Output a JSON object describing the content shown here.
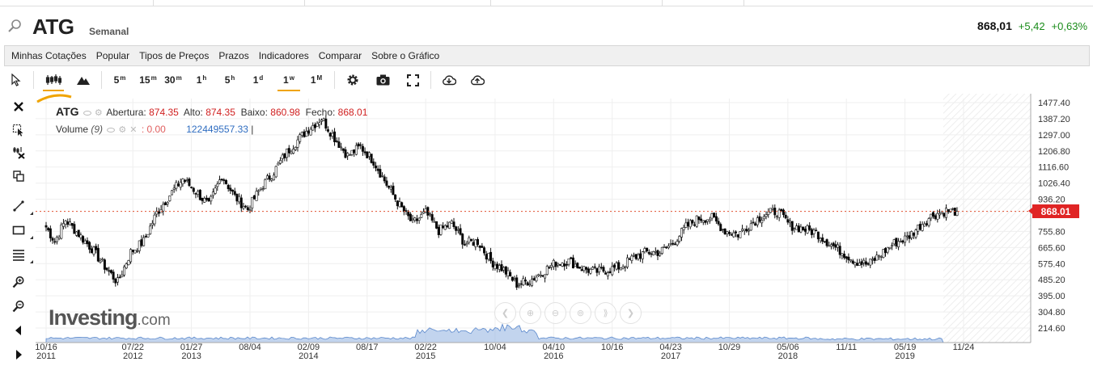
{
  "header": {
    "symbol": "ATG",
    "period": "Semanal",
    "last_price": "868,01",
    "change": "+5,42",
    "change_pct": "+0,63%"
  },
  "menu": [
    "Minhas Cotações",
    "Popular",
    "Tipos de Preços",
    "Prazos",
    "Indicadores",
    "Comparar",
    "Sobre o Gráfico"
  ],
  "toolbar": {
    "timeframes": [
      {
        "label": "5",
        "sup": "m"
      },
      {
        "label": "15",
        "sup": "m"
      },
      {
        "label": "30",
        "sup": "m"
      },
      {
        "label": "1",
        "sup": "h"
      },
      {
        "label": "5",
        "sup": "h"
      },
      {
        "label": "1",
        "sup": "d"
      },
      {
        "label": "1",
        "sup": "w"
      },
      {
        "label": "1",
        "sup": "M"
      }
    ],
    "active_timeframe": "1w",
    "icons": [
      "cursor-icon",
      "candlestick-icon",
      "mountain-icon",
      "settings-icon",
      "camera-icon",
      "fullscreen-icon",
      "download-cloud-icon",
      "upload-cloud-icon"
    ]
  },
  "left_tools": [
    "close-icon",
    "crosshair-select-icon",
    "delete-drawings-icon",
    "clone-icon",
    "trendline-icon",
    "rectangle-icon",
    "horizontal-lines-icon",
    "zoom-in-icon",
    "zoom-out-icon",
    "scroll-left-icon",
    "scroll-right-icon"
  ],
  "legend": {
    "symbol": "ATG",
    "open_label": "Abertura:",
    "open": "874.35",
    "high_label": "Alto:",
    "high": "874.35",
    "low_label": "Baixo:",
    "low": "860.98",
    "close_label": "Fecho:",
    "close": "868.01",
    "volume_label": "Volume",
    "volume_param": "(9)",
    "volume_ma": ": 0.00",
    "volume_value": "122449557.33"
  },
  "watermark": {
    "brand": "Investing",
    "suffix": ".com"
  },
  "price_tag": "868.01",
  "colors": {
    "up_candle": "#ffffff",
    "down_candle": "#000000",
    "volume": "#8fb1e0",
    "price_line": "#e05030",
    "price_tag": "#e02424",
    "change_positive": "#1a8c1a"
  },
  "chart_data": {
    "type": "candlestick",
    "title": "ATG",
    "interval": "Semanal",
    "y_ticks": [
      214.6,
      304.8,
      395.0,
      485.2,
      575.4,
      665.6,
      755.8,
      936.2,
      1026.4,
      1116.6,
      1206.8,
      1297.0,
      1387.2,
      1477.4
    ],
    "y_tick_labels": [
      "214.60",
      "304.80",
      "395.00",
      "485.20",
      "575.40",
      "665.60",
      "755.80",
      "936.20",
      "1026.40",
      "1116.60",
      "1206.80",
      "1297.00",
      "1387.20",
      "1477.40"
    ],
    "x_ticks": [
      {
        "label": "10/16",
        "year": "2011",
        "date": "2011-10-16"
      },
      {
        "label": "07/22",
        "year": "2012",
        "date": "2012-07-22"
      },
      {
        "label": "01/27",
        "year": "2013",
        "date": "2013-01-27"
      },
      {
        "label": "08/04",
        "year": "",
        "date": "2013-08-04"
      },
      {
        "label": "02/09",
        "year": "2014",
        "date": "2014-02-09"
      },
      {
        "label": "08/17",
        "year": "",
        "date": "2014-08-17"
      },
      {
        "label": "02/22",
        "year": "2015",
        "date": "2015-02-22"
      },
      {
        "label": "10/04",
        "year": "",
        "date": "2015-10-04"
      },
      {
        "label": "04/10",
        "year": "2016",
        "date": "2016-04-10"
      },
      {
        "label": "10/16",
        "year": "",
        "date": "2016-10-16"
      },
      {
        "label": "04/23",
        "year": "2017",
        "date": "2017-04-23"
      },
      {
        "label": "10/29",
        "year": "",
        "date": "2017-10-29"
      },
      {
        "label": "05/06",
        "year": "2018",
        "date": "2018-05-06"
      },
      {
        "label": "11/11",
        "year": "",
        "date": "2018-11-11"
      },
      {
        "label": "05/19",
        "year": "2019",
        "date": "2019-05-19"
      },
      {
        "label": "11/24",
        "year": "",
        "date": "2019-11-24"
      }
    ],
    "last_price": 868.01,
    "series": [
      {
        "name": "ATG",
        "x": [
          "2011-10-16",
          "2011-11-13",
          "2011-12-18",
          "2012-01-29",
          "2012-03-11",
          "2012-04-22",
          "2012-06-03",
          "2012-07-15",
          "2012-08-26",
          "2012-10-07",
          "2012-11-18",
          "2012-12-30",
          "2013-02-10",
          "2013-03-24",
          "2013-05-05",
          "2013-06-16",
          "2013-07-28",
          "2013-09-08",
          "2013-10-20",
          "2013-12-01",
          "2014-01-12",
          "2014-02-09",
          "2014-03-23",
          "2014-05-04",
          "2014-06-15",
          "2014-07-27",
          "2014-09-07",
          "2014-10-19",
          "2014-11-30",
          "2015-01-11",
          "2015-02-22",
          "2015-04-05",
          "2015-05-17",
          "2015-06-28",
          "2015-08-09",
          "2015-09-20",
          "2015-11-01",
          "2015-12-13",
          "2016-01-24",
          "2016-03-06",
          "2016-04-17",
          "2016-05-29",
          "2016-07-10",
          "2016-08-21",
          "2016-10-02",
          "2016-11-13",
          "2016-12-25",
          "2017-02-05",
          "2017-03-19",
          "2017-04-30",
          "2017-06-11",
          "2017-07-23",
          "2017-09-03",
          "2017-10-15",
          "2017-11-26",
          "2018-01-07",
          "2018-02-18",
          "2018-04-01",
          "2018-05-13",
          "2018-06-24",
          "2018-08-05",
          "2018-09-16",
          "2018-10-28",
          "2018-12-09",
          "2019-01-20",
          "2019-03-03",
          "2019-04-14",
          "2019-05-26",
          "2019-07-07",
          "2019-08-18",
          "2019-09-29",
          "2019-11-03"
        ],
        "close": [
          780,
          700,
          820,
          740,
          660,
          560,
          470,
          640,
          700,
          860,
          960,
          1050,
          980,
          900,
          1070,
          950,
          880,
          1000,
          1090,
          1200,
          1280,
          1330,
          1390,
          1280,
          1180,
          1230,
          1150,
          1020,
          900,
          800,
          860,
          760,
          800,
          690,
          700,
          590,
          540,
          460,
          480,
          530,
          580,
          590,
          550,
          530,
          540,
          560,
          610,
          640,
          640,
          690,
          780,
          830,
          830,
          760,
          740,
          800,
          850,
          870,
          790,
          770,
          750,
          690,
          640,
          590,
          570,
          630,
          690,
          720,
          790,
          850,
          870,
          868.01
        ]
      }
    ],
    "volume_series": {
      "name": "Volume",
      "note": "area at chart bottom, peaks near 2015"
    },
    "grid": true,
    "legend_position": "top-left"
  }
}
